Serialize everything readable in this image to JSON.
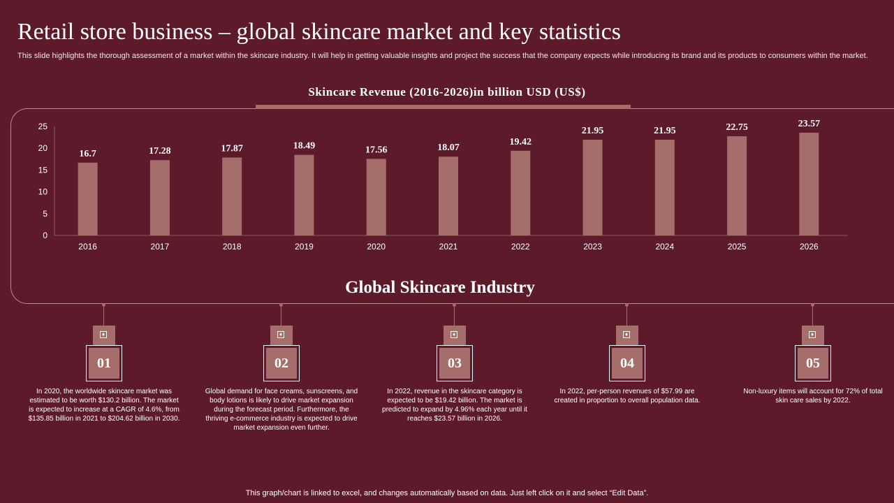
{
  "header": {
    "title": "Retail store business – global skincare market and key statistics",
    "subtitle": "This slide highlights the thorough assessment of a market within the skincare industry. It will help in getting valuable insights and project the success that the company expects while introducing its brand and its products to consumers within the market."
  },
  "colors": {
    "background": "#5c1a2a",
    "bar": "#a66e6a",
    "text": "#ffffff"
  },
  "chart_data": {
    "type": "bar",
    "title": "Skincare Revenue (2016-2026)in billion  USD (US$)",
    "categories": [
      "2016",
      "2017",
      "2018",
      "2019",
      "2020",
      "2021",
      "2022",
      "2023",
      "2024",
      "2025",
      "2026"
    ],
    "values": [
      16.7,
      17.28,
      17.87,
      18.49,
      17.56,
      18.07,
      19.42,
      21.95,
      21.95,
      22.75,
      23.57
    ],
    "value_labels": [
      "16.7",
      "17.28",
      "17.87",
      "18.49",
      "17.56",
      "18.07",
      "19.42",
      "21.95",
      "21.95",
      "22.75",
      "23.57"
    ],
    "yticks": [
      "0",
      "5",
      "10",
      "15",
      "20",
      "25"
    ],
    "ylim": [
      0,
      25
    ],
    "xlabel": "",
    "ylabel": "",
    "grid": false,
    "legend": "none"
  },
  "industry": {
    "title": "Global Skincare Industry",
    "stats": [
      {
        "number": "01",
        "text": "In 2020, the worldwide skincare market was estimated to be worth $130.2 billion. The market is expected to increase at a CAGR of 4.6%, from $135.85 billion in 2021 to $204.62 billion in 2030."
      },
      {
        "number": "02",
        "text": "Global demand for face creams, sunscreens, and body lotions is likely to drive market expansion during the forecast period. Furthermore, the thriving e-commerce industry is expected to drive market expansion even further."
      },
      {
        "number": "03",
        "text": "In 2022, revenue in the skincare category is expected to be $19.42 billion. The market is predicted to expand by 4.96% each year until it reaches $23.57 billion in 2026."
      },
      {
        "number": "04",
        "text": "In 2022, per-person revenues of $57.99 are created in proportion to overall population data."
      },
      {
        "number": "05",
        "text": "Non-luxury items will account for 72% of total skin care sales by 2022."
      }
    ]
  },
  "footer": {
    "note": "This graph/chart is linked to excel,  and changes automatically based on data. Just left click on it and select “Edit Data”."
  }
}
